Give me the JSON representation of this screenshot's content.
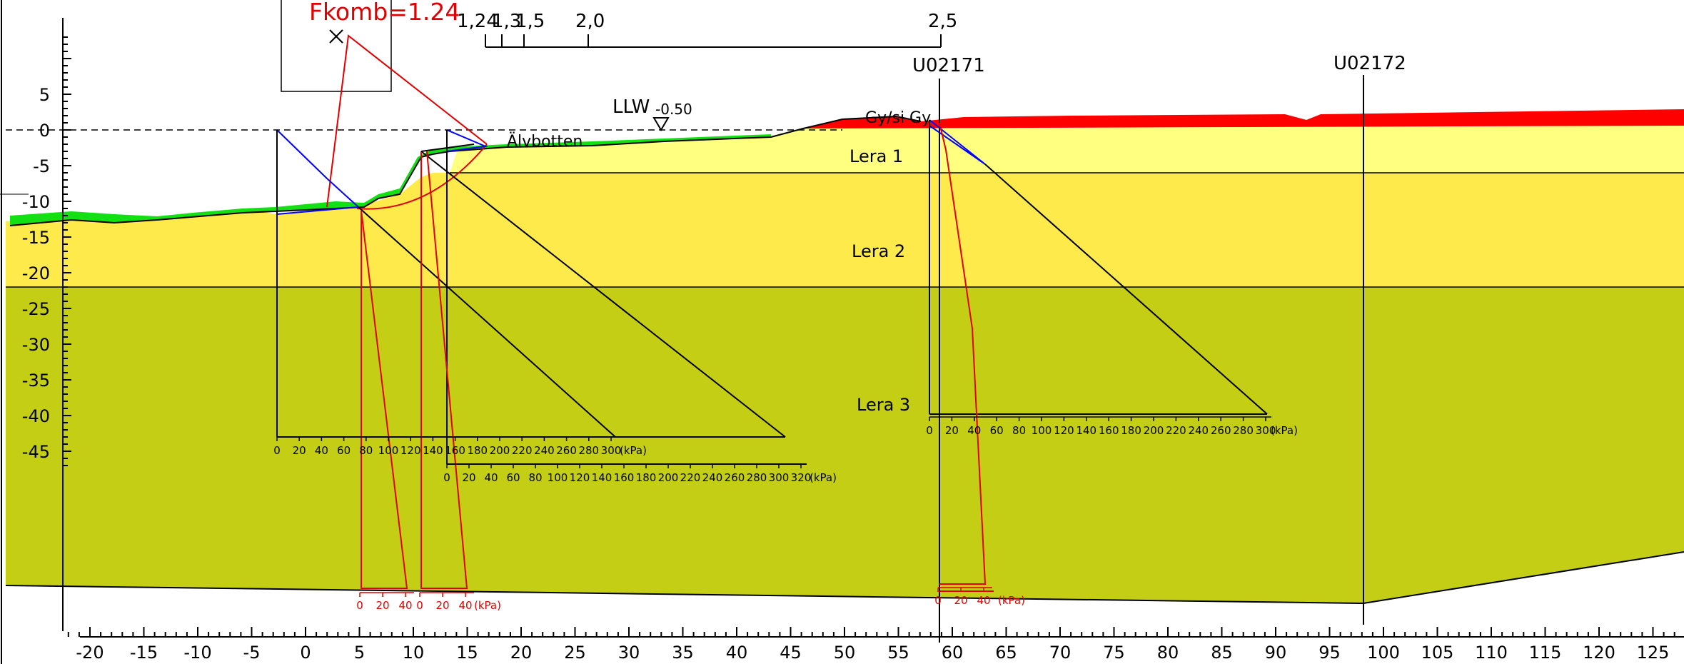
{
  "fkomb": "Fkomb=1.24",
  "safety_scale": [
    "1,24",
    "1,3",
    "1,5",
    "2,0",
    "2,5"
  ],
  "boreholes": [
    "U02171",
    "U02172"
  ],
  "water": {
    "label": "LLW",
    "value": "-0.50"
  },
  "labels": {
    "alvbotten": "Älvbotten",
    "gysigy": "Gy/si Gy"
  },
  "layers": [
    "Lera 1",
    "Lera 2",
    "Lera 3"
  ],
  "x_axis_ticks": [
    "-20",
    "-15",
    "-10",
    "-5",
    "0",
    "5",
    "10",
    "15",
    "20",
    "25",
    "30",
    "35",
    "40",
    "45",
    "50",
    "55",
    "60",
    "65",
    "70",
    "75",
    "80",
    "85",
    "90",
    "95",
    "100",
    "105",
    "110",
    "115",
    "120",
    "125"
  ],
  "y_axis_ticks": [
    "5",
    "0",
    "-5",
    "-10",
    "-15",
    "-20",
    "-25",
    "-30",
    "-35",
    "-40",
    "-45"
  ],
  "unit": "(kPa)",
  "scale1_ticks": [
    "0",
    "20",
    "40",
    "60",
    "80",
    "100",
    "120",
    "140",
    "160",
    "180",
    "200",
    "220",
    "240",
    "260",
    "280",
    "300"
  ],
  "scale2_ticks": [
    "0",
    "20",
    "40",
    "60",
    "80",
    "100",
    "120",
    "140",
    "160",
    "180",
    "200",
    "220",
    "240",
    "260",
    "280",
    "300",
    "320"
  ],
  "scale3_ticks": [
    "0",
    "20",
    "40",
    "60",
    "80",
    "100",
    "120",
    "140",
    "160",
    "180",
    "200",
    "220",
    "240",
    "260",
    "280",
    "300"
  ],
  "red_scale_ticks": [
    "0",
    "20",
    "40"
  ],
  "colors": {
    "lera1": "#ffff80",
    "lera2": "#ffea4b",
    "lera3": "#c4ce14",
    "green": "#13e013",
    "red": "#ff0000",
    "stroke_red": "#e00000",
    "stroke_blue": "#0000ff"
  }
}
